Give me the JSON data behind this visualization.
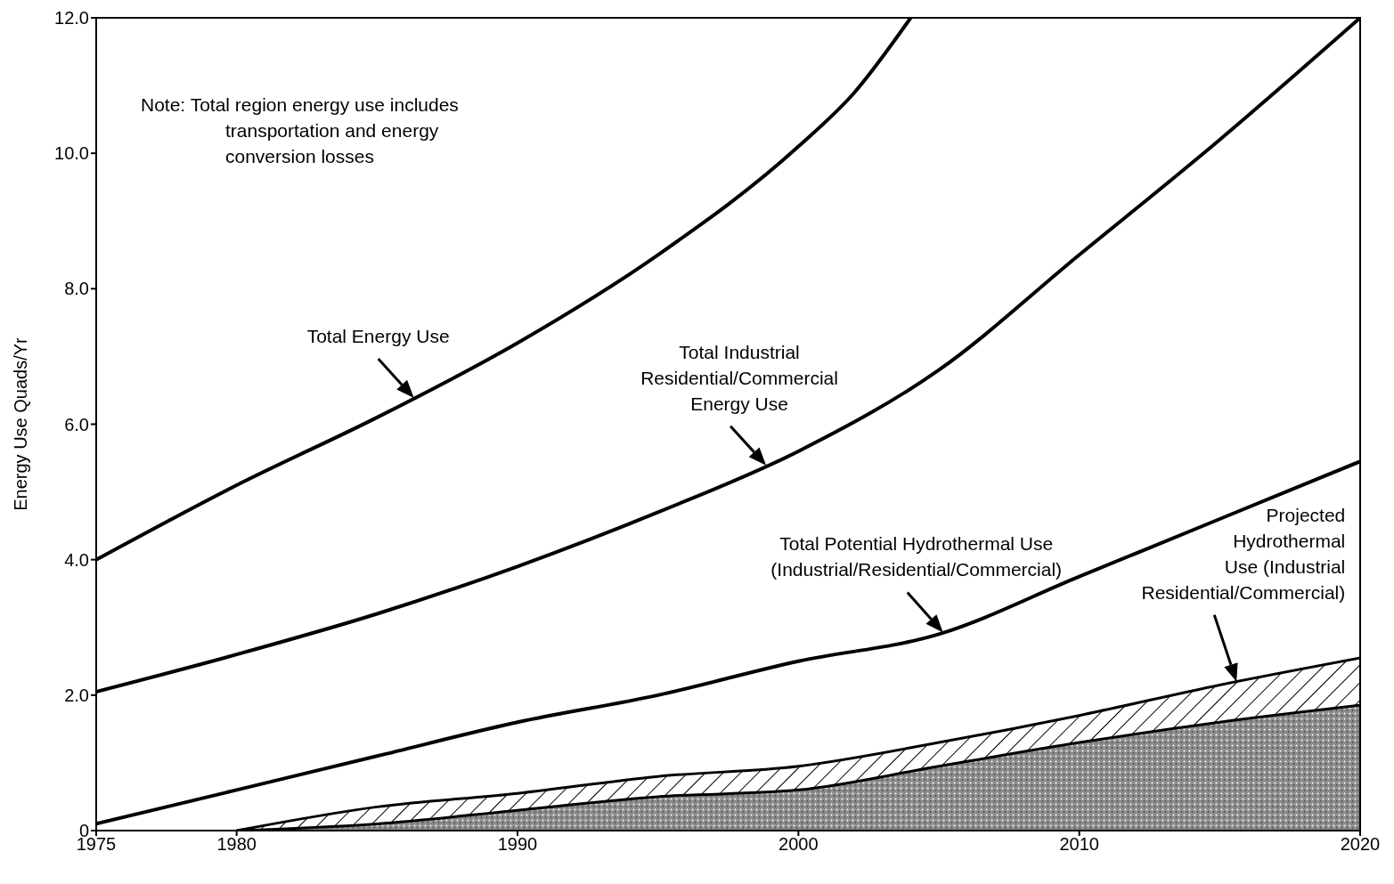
{
  "chart_data": {
    "type": "line",
    "ylabel": "Energy Use Quads/Yr",
    "xlim": [
      1975,
      2020
    ],
    "xticks": [
      1975,
      1980,
      1990,
      2000,
      2010,
      2020
    ],
    "ylim": [
      0,
      12
    ],
    "yticks": [
      0,
      {
        "value": 2,
        "label": "2.0"
      },
      {
        "value": 4,
        "label": "4.0"
      },
      {
        "value": 6,
        "label": "6.0"
      },
      {
        "value": 8,
        "label": "8.0"
      },
      {
        "value": 10,
        "label": "10.0"
      },
      {
        "value": 12,
        "label": "12.0"
      }
    ],
    "grid": false,
    "legend": false,
    "marker": "none",
    "line_style": "solid",
    "series": [
      {
        "name": "Total Energy Use",
        "color": "#000000",
        "x": [
          1975,
          1980,
          1985,
          1990,
          1995,
          2000,
          2002,
          2004
        ],
        "values": [
          4.0,
          5.1,
          6.1,
          7.2,
          8.5,
          10.1,
          10.9,
          12.0
        ]
      },
      {
        "name": "Total Industrial\nResidential/Commercial\nEnergy Use",
        "color": "#000000",
        "x": [
          1975,
          1980,
          1985,
          1990,
          1995,
          2000,
          2005,
          2010,
          2015,
          2020
        ],
        "values": [
          2.05,
          2.6,
          3.2,
          3.9,
          4.7,
          5.6,
          6.8,
          8.5,
          10.2,
          12.0
        ]
      },
      {
        "name": "Total Potential Hydrothermal Use\n(Industrial/Residential/Commercial)",
        "color": "#000000",
        "x": [
          1975,
          1980,
          1985,
          1990,
          1995,
          2000,
          2005,
          2010,
          2015,
          2020
        ],
        "values": [
          0.1,
          0.6,
          1.1,
          1.6,
          2.0,
          2.5,
          2.9,
          3.75,
          4.6,
          5.45
        ]
      },
      {
        "type": "area",
        "name": "Projected\nHydrothermal\nUse (Industrial\nResidential/Commercial)",
        "color": "#000000",
        "x": [
          1980,
          1985,
          1990,
          1995,
          2000,
          2005,
          2010,
          2015,
          2020
        ],
        "values": [
          0,
          0.35,
          0.55,
          0.8,
          0.95,
          1.3,
          1.7,
          2.15,
          2.55
        ]
      },
      {
        "type": "area",
        "color": "#8c8c8c",
        "x": [
          1980,
          1985,
          1990,
          1995,
          2000,
          2005,
          2010,
          2015,
          2020
        ],
        "values": [
          0,
          0.1,
          0.3,
          0.5,
          0.6,
          0.95,
          1.3,
          1.6,
          1.85
        ]
      }
    ],
    "annotations": [
      "Note:  Total region energy use includes\ntransportation and energy\nconversion losses"
    ]
  }
}
